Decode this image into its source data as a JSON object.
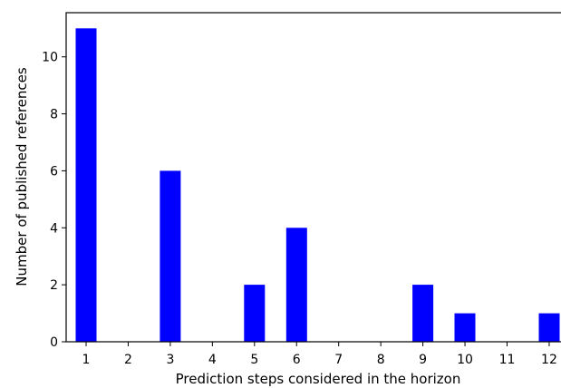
{
  "chart_data": {
    "type": "bar",
    "title": "",
    "xlabel": "Prediction steps considered in the horizon",
    "ylabel": "Number of published references",
    "categories": [
      "1",
      "2",
      "3",
      "4",
      "5",
      "6",
      "7",
      "8",
      "9",
      "10",
      "11",
      "12"
    ],
    "values": [
      11,
      0,
      6,
      0,
      2,
      4,
      0,
      0,
      2,
      1,
      0,
      1
    ],
    "ylim": [
      0,
      11.55
    ],
    "yticks": [
      0,
      2,
      4,
      6,
      8,
      10
    ],
    "grid": false,
    "bar_color": "#0000ff"
  }
}
